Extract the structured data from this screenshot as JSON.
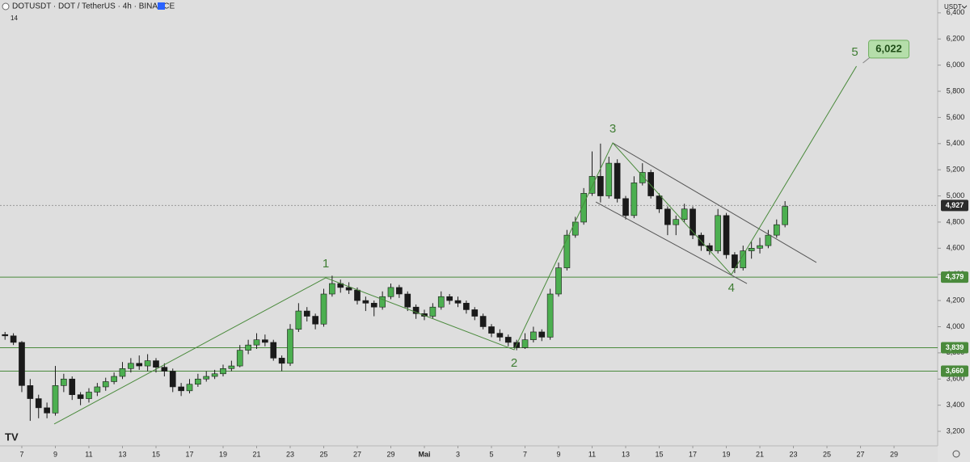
{
  "chart_data": {
    "type": "candlestick",
    "title": "DOTUSDT · DOT / TetherUS · 4h · BINANCE",
    "subtitle": "14",
    "currency": "USDT",
    "up_color": "#4caf50",
    "down_color": "#1a1a1a",
    "xlim": [
      4.7,
      60.6
    ],
    "ylim": [
      3089,
      6498
    ],
    "xticks": [
      {
        "value": 6,
        "label": "7"
      },
      {
        "value": 8,
        "label": "9"
      },
      {
        "value": 10,
        "label": "11"
      },
      {
        "value": 12,
        "label": "13"
      },
      {
        "value": 14,
        "label": "15"
      },
      {
        "value": 16,
        "label": "17"
      },
      {
        "value": 18,
        "label": "19"
      },
      {
        "value": 20,
        "label": "21"
      },
      {
        "value": 22,
        "label": "23"
      },
      {
        "value": 24,
        "label": "25"
      },
      {
        "value": 26,
        "label": "27"
      },
      {
        "value": 28,
        "label": "29"
      },
      {
        "value": 30,
        "label": "Mai"
      },
      {
        "value": 32,
        "label": "3"
      },
      {
        "value": 34,
        "label": "5"
      },
      {
        "value": 36,
        "label": "7"
      },
      {
        "value": 38,
        "label": "9"
      },
      {
        "value": 40,
        "label": "11"
      },
      {
        "value": 42,
        "label": "13"
      },
      {
        "value": 44,
        "label": "15"
      },
      {
        "value": 46,
        "label": "17"
      },
      {
        "value": 48,
        "label": "19"
      },
      {
        "value": 50,
        "label": "21"
      },
      {
        "value": 52,
        "label": "23"
      },
      {
        "value": 54,
        "label": "25"
      },
      {
        "value": 56,
        "label": "27"
      },
      {
        "value": 58,
        "label": "29"
      }
    ],
    "yticks": [
      {
        "value": 3200,
        "label": "3,200"
      },
      {
        "value": 3400,
        "label": "3,400"
      },
      {
        "value": 3600,
        "label": "3,600"
      },
      {
        "value": 3800,
        "label": "3,800"
      },
      {
        "value": 4000,
        "label": "4,000"
      },
      {
        "value": 4200,
        "label": "4,200"
      },
      {
        "value": 4400,
        "label": "4,400"
      },
      {
        "value": 4600,
        "label": "4,600"
      },
      {
        "value": 4800,
        "label": "4,800"
      },
      {
        "value": 5000,
        "label": "5,000"
      },
      {
        "value": 5200,
        "label": "5,200"
      },
      {
        "value": 5400,
        "label": "5,400"
      },
      {
        "value": 5600,
        "label": "5,600"
      },
      {
        "value": 5800,
        "label": "5,800"
      },
      {
        "value": 6000,
        "label": "6,000"
      },
      {
        "value": 6200,
        "label": "6,200"
      },
      {
        "value": 6400,
        "label": "6,400"
      }
    ],
    "x": [
      5,
      5.5,
      6,
      6.5,
      7,
      7.5,
      8,
      8.5,
      9,
      9.5,
      10,
      10.5,
      11,
      11.5,
      12,
      12.5,
      13,
      13.5,
      14,
      14.5,
      15,
      15.5,
      16,
      16.5,
      17,
      17.5,
      18,
      18.5,
      19,
      19.5,
      20,
      20.5,
      21,
      21.5,
      22,
      22.5,
      23,
      23.5,
      24,
      24.5,
      25,
      25.5,
      26,
      26.5,
      27,
      27.5,
      28,
      28.5,
      29,
      29.5,
      30,
      30.5,
      31,
      31.5,
      32,
      32.5,
      33,
      33.5,
      34,
      34.5,
      35,
      35.5,
      36,
      36.5,
      37,
      37.5,
      38,
      38.5,
      39,
      39.5,
      40,
      40.5,
      41,
      41.5,
      42,
      42.5,
      43,
      43.5,
      44,
      44.5,
      45,
      45.5,
      46,
      46.5,
      47,
      47.5,
      48,
      48.5,
      49,
      49.5,
      50,
      50.5,
      51,
      51.5
    ],
    "ohlc": [
      [
        3940,
        3960,
        3900,
        3930
      ],
      [
        3930,
        3950,
        3860,
        3880
      ],
      [
        3880,
        3890,
        3500,
        3550
      ],
      [
        3550,
        3600,
        3280,
        3450
      ],
      [
        3450,
        3480,
        3300,
        3380
      ],
      [
        3380,
        3420,
        3300,
        3340
      ],
      [
        3340,
        3700,
        3320,
        3550
      ],
      [
        3550,
        3640,
        3500,
        3600
      ],
      [
        3600,
        3620,
        3440,
        3480
      ],
      [
        3480,
        3500,
        3400,
        3450
      ],
      [
        3450,
        3530,
        3420,
        3500
      ],
      [
        3500,
        3570,
        3470,
        3540
      ],
      [
        3540,
        3610,
        3510,
        3580
      ],
      [
        3580,
        3650,
        3560,
        3620
      ],
      [
        3620,
        3730,
        3600,
        3680
      ],
      [
        3680,
        3760,
        3650,
        3720
      ],
      [
        3720,
        3780,
        3670,
        3700
      ],
      [
        3700,
        3790,
        3660,
        3740
      ],
      [
        3740,
        3760,
        3650,
        3690
      ],
      [
        3690,
        3720,
        3620,
        3660
      ],
      [
        3660,
        3680,
        3500,
        3540
      ],
      [
        3540,
        3570,
        3470,
        3510
      ],
      [
        3510,
        3600,
        3490,
        3560
      ],
      [
        3560,
        3640,
        3540,
        3600
      ],
      [
        3600,
        3660,
        3580,
        3620
      ],
      [
        3620,
        3670,
        3600,
        3640
      ],
      [
        3640,
        3710,
        3620,
        3680
      ],
      [
        3680,
        3740,
        3660,
        3700
      ],
      [
        3700,
        3860,
        3690,
        3820
      ],
      [
        3820,
        3900,
        3790,
        3860
      ],
      [
        3860,
        3950,
        3830,
        3900
      ],
      [
        3900,
        3940,
        3850,
        3880
      ],
      [
        3880,
        3900,
        3740,
        3760
      ],
      [
        3760,
        3780,
        3660,
        3720
      ],
      [
        3720,
        4020,
        3700,
        3980
      ],
      [
        3980,
        4180,
        3960,
        4120
      ],
      [
        4120,
        4150,
        4040,
        4080
      ],
      [
        4080,
        4100,
        3980,
        4020
      ],
      [
        4020,
        4290,
        4000,
        4250
      ],
      [
        4250,
        4390,
        4230,
        4330
      ],
      [
        4330,
        4360,
        4260,
        4300
      ],
      [
        4300,
        4340,
        4250,
        4280
      ],
      [
        4280,
        4300,
        4170,
        4200
      ],
      [
        4200,
        4230,
        4120,
        4180
      ],
      [
        4180,
        4200,
        4080,
        4150
      ],
      [
        4150,
        4270,
        4130,
        4230
      ],
      [
        4230,
        4330,
        4210,
        4300
      ],
      [
        4300,
        4320,
        4220,
        4250
      ],
      [
        4250,
        4270,
        4120,
        4150
      ],
      [
        4150,
        4170,
        4060,
        4100
      ],
      [
        4100,
        4130,
        4050,
        4080
      ],
      [
        4080,
        4180,
        4060,
        4150
      ],
      [
        4150,
        4270,
        4130,
        4230
      ],
      [
        4230,
        4250,
        4170,
        4200
      ],
      [
        4200,
        4230,
        4150,
        4180
      ],
      [
        4180,
        4200,
        4100,
        4130
      ],
      [
        4130,
        4150,
        4050,
        4080
      ],
      [
        4080,
        4100,
        3980,
        4000
      ],
      [
        4000,
        4020,
        3920,
        3950
      ],
      [
        3950,
        3980,
        3890,
        3920
      ],
      [
        3920,
        3940,
        3850,
        3880
      ],
      [
        3880,
        3900,
        3820,
        3840
      ],
      [
        3840,
        3950,
        3830,
        3900
      ],
      [
        3900,
        4000,
        3880,
        3960
      ],
      [
        3960,
        3980,
        3890,
        3920
      ],
      [
        3920,
        4290,
        3900,
        4250
      ],
      [
        4250,
        4490,
        4230,
        4450
      ],
      [
        4450,
        4740,
        4430,
        4700
      ],
      [
        4700,
        4840,
        4680,
        4800
      ],
      [
        4800,
        5060,
        4780,
        5020
      ],
      [
        5020,
        5340,
        5000,
        5150
      ],
      [
        5150,
        5400,
        4950,
        5000
      ],
      [
        5000,
        5300,
        4980,
        5250
      ],
      [
        5250,
        5280,
        4950,
        4980
      ],
      [
        4980,
        5000,
        4820,
        4850
      ],
      [
        4850,
        5150,
        4830,
        5100
      ],
      [
        5100,
        5250,
        5080,
        5180
      ],
      [
        5180,
        5200,
        4980,
        5000
      ],
      [
        5000,
        5020,
        4870,
        4900
      ],
      [
        4900,
        4920,
        4700,
        4780
      ],
      [
        4780,
        4850,
        4700,
        4820
      ],
      [
        4820,
        4940,
        4800,
        4900
      ],
      [
        4900,
        4920,
        4670,
        4700
      ],
      [
        4700,
        4720,
        4580,
        4620
      ],
      [
        4620,
        4640,
        4550,
        4580
      ],
      [
        4580,
        4900,
        4560,
        4850
      ],
      [
        4850,
        4870,
        4520,
        4550
      ],
      [
        4550,
        4570,
        4410,
        4450
      ],
      [
        4450,
        4620,
        4430,
        4580
      ],
      [
        4580,
        4650,
        4520,
        4600
      ],
      [
        4600,
        4680,
        4560,
        4620
      ],
      [
        4620,
        4740,
        4600,
        4700
      ],
      [
        4700,
        4820,
        4680,
        4780
      ],
      [
        4780,
        4960,
        4760,
        4920
      ]
    ],
    "horizontal_lines": [
      {
        "value": 4379,
        "label": "4,379",
        "color": "#4a8a3c"
      },
      {
        "value": 3839,
        "label": "3,839",
        "color": "#4a8a3c"
      },
      {
        "value": 3660,
        "label": "3,660",
        "color": "#4a8a3c"
      }
    ],
    "last_price": {
      "value": 4927,
      "label": "4,927"
    },
    "wave_color": "#4a8a3c",
    "wave_x": [
      7.93,
      24.12,
      35.35,
      41.23,
      48.3,
      55.76
    ],
    "wave_y": [
      3256,
      4374,
      3824,
      5405,
      4398,
      5992
    ],
    "wave_labels": [
      null,
      "1",
      "2",
      "3",
      "4",
      "5"
    ],
    "target": {
      "value": 6022,
      "label": "6,022"
    },
    "channel_color": "#555555",
    "channel": [
      {
        "x": [
          41.23,
          53.37
        ],
        "y": [
          5405,
          4491
        ]
      },
      {
        "x": [
          40.22,
          49.23
        ],
        "y": [
          4954,
          4330
        ]
      }
    ]
  }
}
